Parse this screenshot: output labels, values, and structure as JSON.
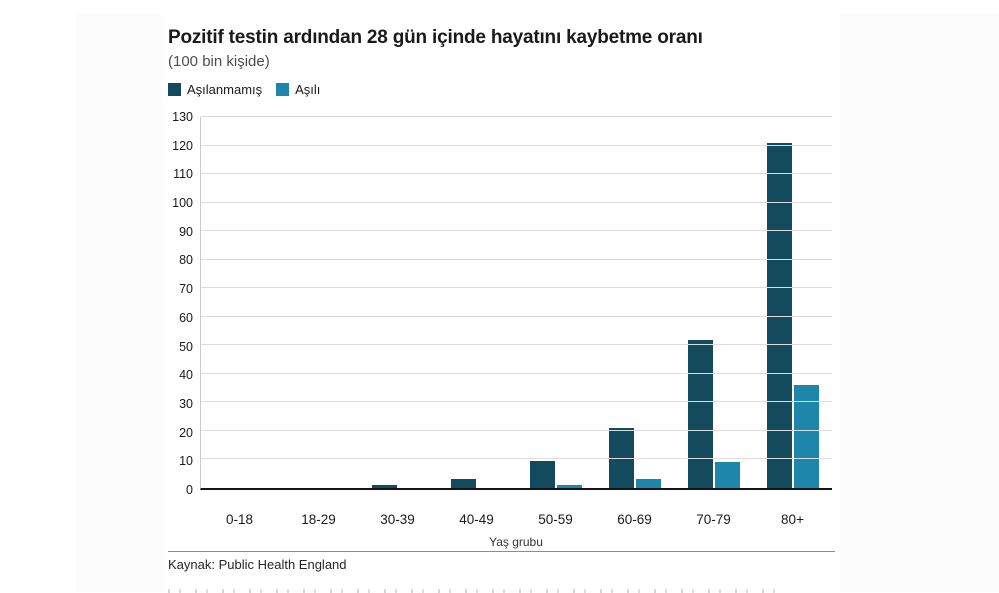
{
  "header": {
    "title": "Pozitif testin ardından 28 gün içinde hayatını kaybetme oranı",
    "subtitle": "(100 bin kişide)"
  },
  "chart_data": {
    "type": "bar",
    "title": "Pozitif testin ardından 28 gün içinde hayatını kaybetme oranı",
    "subtitle": "(100 bin kişide)",
    "categories": [
      "0-18",
      "18-29",
      "30-39",
      "40-49",
      "50-59",
      "60-69",
      "70-79",
      "80+"
    ],
    "series": [
      {
        "name": "Aşılanmamış",
        "color": "#144a5e",
        "values": [
          0,
          0,
          1,
          3,
          9.5,
          21,
          52,
          121
        ]
      },
      {
        "name": "Aşılı",
        "color": "#1e86aa",
        "values": [
          0,
          0,
          0,
          0,
          1,
          3,
          9,
          36
        ]
      }
    ],
    "xlabel": "Yaş grubu",
    "ylabel": "",
    "ylim": [
      0,
      130
    ],
    "y_ticks": [
      0,
      10,
      20,
      30,
      40,
      50,
      60,
      70,
      80,
      90,
      100,
      110,
      120,
      130
    ],
    "grid": true,
    "legend_position": "top-left",
    "colors": {
      "unvaccinated": "#144a5e",
      "vaccinated": "#1e86aa",
      "gridline": "#dcdcdc",
      "axis": "#141414"
    }
  },
  "footer": {
    "source": "Kaynak: Public Health England"
  }
}
